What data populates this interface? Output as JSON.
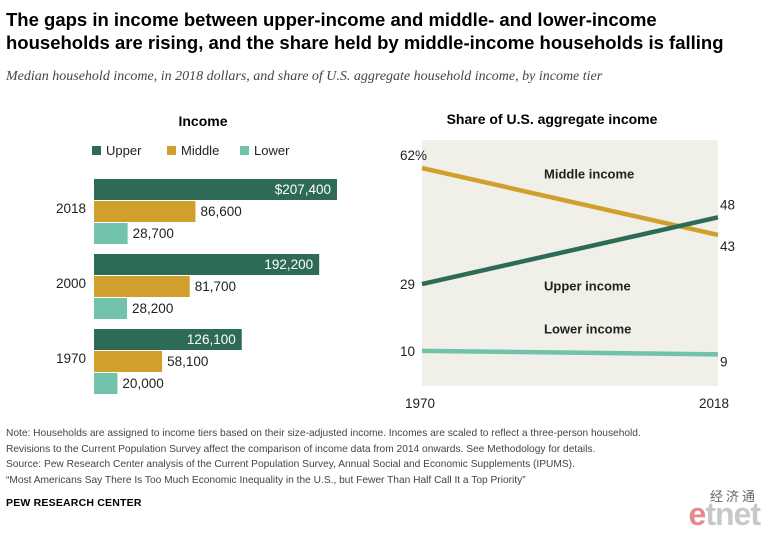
{
  "title_lines": [
    "The gaps in income between upper-income and middle- and lower-income",
    "households are rising, and the share held by middle-income households is falling"
  ],
  "subtitle": "Median household income, in 2018 dollars, and share of U.S. aggregate household income, by income tier",
  "colors": {
    "upper": "#2e6b57",
    "middle": "#d1a02c",
    "lower": "#71c2ab",
    "panel_bg": "#f0efe8"
  },
  "chart_data": [
    {
      "type": "bar",
      "orientation": "horizontal",
      "title": "Income",
      "legend": [
        "Upper",
        "Middle",
        "Lower"
      ],
      "legend_position": "top",
      "groups": [
        {
          "label": "2018",
          "values": [
            {
              "tier": "upper",
              "value": 207400,
              "label": "$207,400"
            },
            {
              "tier": "middle",
              "value": 86600,
              "label": "86,600"
            },
            {
              "tier": "lower",
              "value": 28700,
              "label": "28,700"
            }
          ]
        },
        {
          "label": "2000",
          "values": [
            {
              "tier": "upper",
              "value": 192200,
              "label": "192,200"
            },
            {
              "tier": "middle",
              "value": 81700,
              "label": "81,700"
            },
            {
              "tier": "lower",
              "value": 28200,
              "label": "28,200"
            }
          ]
        },
        {
          "label": "1970",
          "values": [
            {
              "tier": "upper",
              "value": 126100,
              "label": "126,100"
            },
            {
              "tier": "middle",
              "value": 58100,
              "label": "58,100"
            },
            {
              "tier": "lower",
              "value": 20000,
              "label": "20,000"
            }
          ]
        }
      ],
      "grid": false
    },
    {
      "type": "line",
      "title": "Share of U.S. aggregate income",
      "x": [
        1970,
        2018
      ],
      "x_tick_labels": [
        "1970",
        "2018"
      ],
      "ylim": [
        0,
        70
      ],
      "grid": false,
      "series": [
        {
          "name": "Middle income",
          "tier": "middle",
          "values": [
            62,
            43
          ],
          "start_label": "62%",
          "end_label": "43"
        },
        {
          "name": "Upper income",
          "tier": "upper",
          "values": [
            29,
            48
          ],
          "start_label": "29",
          "end_label": "48"
        },
        {
          "name": "Lower income",
          "tier": "lower",
          "values": [
            10,
            9
          ],
          "start_label": "10",
          "end_label": "9"
        }
      ]
    }
  ],
  "notes": [
    "Note: Households are assigned to income tiers based on their size-adjusted income. Incomes are scaled to reflect a three-person household.",
    "Revisions to the Current Population Survey affect the comparison of income data from 2014 onwards. See Methodology for details.",
    "Source: Pew Research Center analysis of the Current Population Survey, Annual Social and Economic Supplements (IPUMS).",
    "“Most Americans Say There Is Too Much Economic Inequality in the U.S., but Fewer Than Half Call It a Top Priority”"
  ],
  "brand": "PEW RESEARCH CENTER",
  "watermark": {
    "chinese": "经济通",
    "logo": "etnet"
  }
}
